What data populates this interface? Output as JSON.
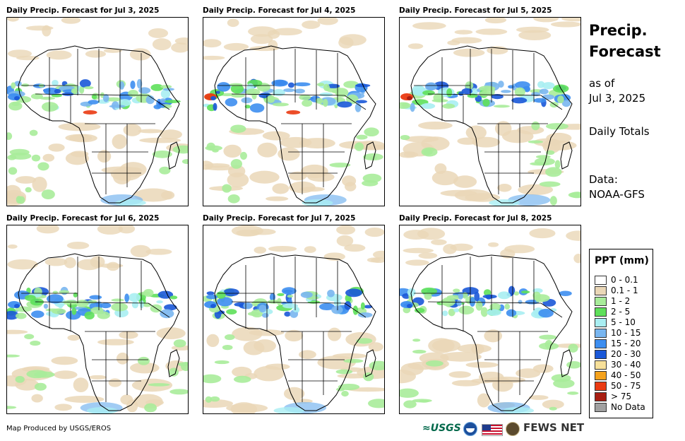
{
  "panels": [
    {
      "title": "Daily Precip. Forecast for Jul 3, 2025"
    },
    {
      "title": "Daily Precip. Forecast for Jul 4, 2025"
    },
    {
      "title": "Daily Precip. Forecast for Jul 5, 2025"
    },
    {
      "title": "Daily Precip. Forecast for Jul 6, 2025"
    },
    {
      "title": "Daily Precip. Forecast for Jul 7, 2025"
    },
    {
      "title": "Daily Precip. Forecast for Jul 8, 2025"
    }
  ],
  "sidebar": {
    "title_line1": "Precip.",
    "title_line2": "Forecast",
    "asof_line1": "as of",
    "asof_line2": "Jul 3, 2025",
    "totals": "Daily Totals",
    "data_line1": "Data:",
    "data_line2": "NOAA-GFS"
  },
  "legend": {
    "title": "PPT (mm)",
    "items": [
      {
        "label": "0 - 0.1",
        "color": "#ffffff"
      },
      {
        "label": "0.1 - 1",
        "color": "#ead7b7"
      },
      {
        "label": "1 - 2",
        "color": "#a8ec9a"
      },
      {
        "label": "2 - 5",
        "color": "#5ee05a"
      },
      {
        "label": "5 - 10",
        "color": "#a9eef2"
      },
      {
        "label": "10 - 15",
        "color": "#79b6f0"
      },
      {
        "label": "15 - 20",
        "color": "#3d8ef0"
      },
      {
        "label": "20 - 30",
        "color": "#1a58d8"
      },
      {
        "label": "30 - 40",
        "color": "#f7e09a"
      },
      {
        "label": "40 - 50",
        "color": "#f5a21c"
      },
      {
        "label": "50 - 75",
        "color": "#ea3a12"
      },
      {
        "label": "> 75",
        "color": "#a81e12"
      },
      {
        "label": "No Data",
        "color": "#a0a0a0"
      }
    ]
  },
  "footer": {
    "credit": "Map Produced by USGS/EROS",
    "usgs": "≈USGS",
    "fews": "FEWS NET"
  }
}
